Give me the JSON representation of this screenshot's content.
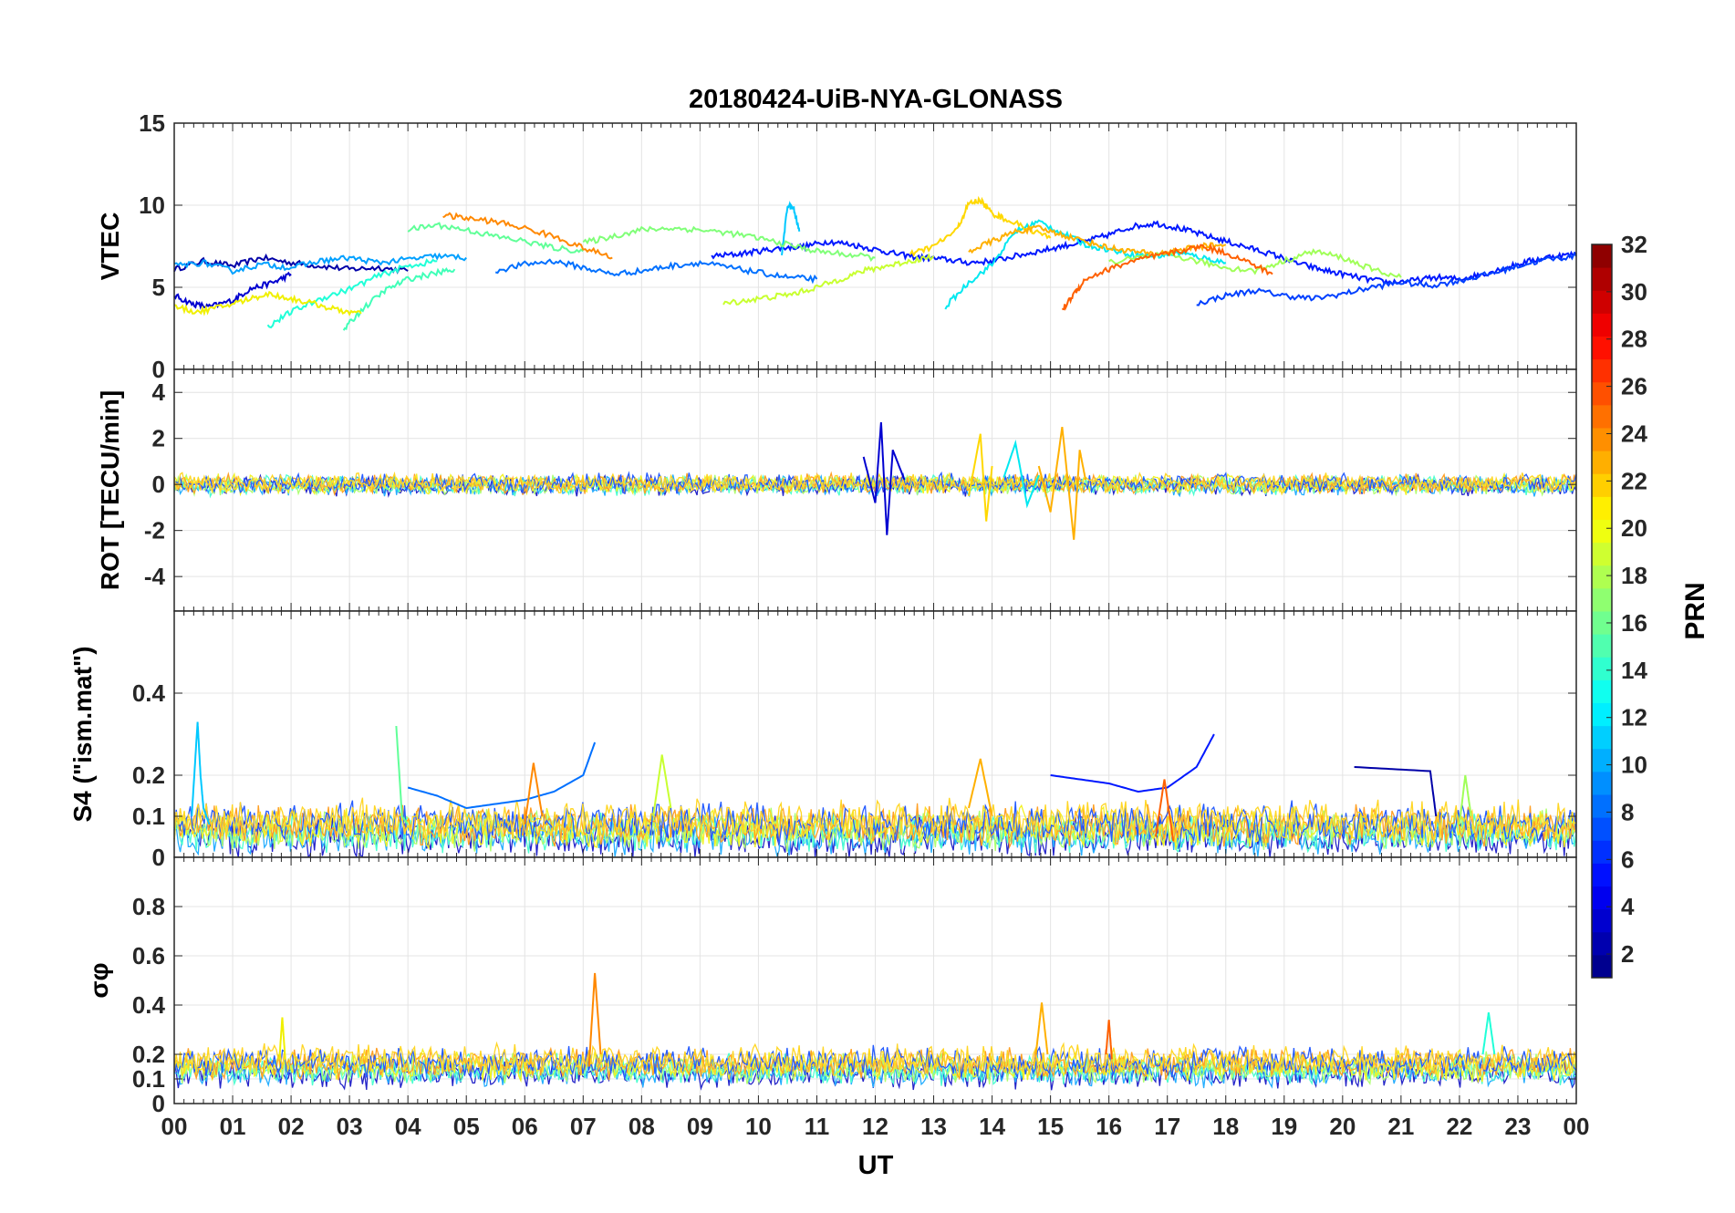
{
  "figure": {
    "title": "20180424-UiB-NYA-GLONASS",
    "xlabel": "UT",
    "xticks": [
      "00",
      "01",
      "02",
      "03",
      "04",
      "05",
      "06",
      "07",
      "08",
      "09",
      "10",
      "11",
      "12",
      "13",
      "14",
      "15",
      "16",
      "17",
      "18",
      "19",
      "20",
      "21",
      "22",
      "23",
      "00"
    ]
  },
  "colorbar": {
    "label": "PRN",
    "ticks": [
      "2",
      "4",
      "6",
      "8",
      "10",
      "12",
      "14",
      "16",
      "18",
      "20",
      "22",
      "24",
      "26",
      "28",
      "30",
      "32"
    ],
    "range": [
      1,
      32
    ],
    "colormap": "jet"
  },
  "chart_data": [
    {
      "type": "line",
      "ylabel": "VTEC",
      "ylim": [
        0,
        15
      ],
      "yticks": [
        "0",
        "5",
        "10",
        "15"
      ],
      "xlim": [
        0,
        24
      ],
      "grid": true,
      "series": [
        {
          "prn": 2,
          "color": "#0000a8",
          "x": [
            0,
            0.5,
            1,
            1.5,
            2,
            2.5,
            3,
            3.5,
            4
          ],
          "y": [
            6.1,
            6.6,
            6.3,
            6.8,
            6.5,
            6.3,
            6.1,
            6.2,
            6.0
          ]
        },
        {
          "prn": 3,
          "color": "#0000d0",
          "x": [
            0,
            0.3,
            0.6,
            1,
            1.3,
            1.7,
            2
          ],
          "y": [
            4.5,
            4.0,
            3.8,
            4.2,
            4.9,
            5.3,
            5.8
          ]
        },
        {
          "prn": 5,
          "color": "#0018ff",
          "x": [
            9.2,
            9.6,
            10,
            10.4,
            10.8,
            11.2,
            11.6,
            12,
            12.4,
            12.8,
            13.2,
            13.6,
            14,
            14.4,
            14.8,
            15.2,
            15.6,
            16,
            16.4,
            16.8,
            17.2,
            17.6,
            18,
            18.4,
            18.8,
            19.2,
            19.6,
            20,
            20.4,
            20.8,
            21.2,
            21.6,
            22,
            22.4,
            22.8,
            23.2,
            23.6,
            24
          ],
          "y": [
            6.9,
            7.0,
            7.2,
            7.4,
            7.5,
            7.8,
            7.6,
            7.3,
            7.0,
            6.8,
            6.7,
            6.5,
            6.6,
            6.9,
            7.2,
            7.5,
            7.8,
            8.2,
            8.7,
            8.9,
            8.6,
            8.2,
            7.8,
            7.4,
            7.0,
            6.5,
            6.1,
            5.8,
            5.5,
            5.3,
            5.4,
            5.6,
            5.5,
            5.8,
            6.2,
            6.6,
            6.9,
            7.0
          ]
        },
        {
          "prn": 6,
          "color": "#0040ff",
          "x": [
            17.5,
            18,
            18.5,
            19,
            19.5,
            20,
            20.5,
            21,
            21.5,
            22,
            22.5,
            23,
            23.5,
            24
          ],
          "y": [
            4.0,
            4.5,
            4.8,
            4.5,
            4.3,
            4.6,
            5.0,
            5.3,
            5.1,
            5.4,
            5.8,
            6.3,
            6.7,
            6.9
          ]
        },
        {
          "prn": 8,
          "color": "#0070ff",
          "x": [
            5.5,
            6,
            6.5,
            7,
            7.5,
            8,
            8.5,
            9,
            9.5,
            10,
            10.5,
            11
          ],
          "y": [
            6.0,
            6.4,
            6.6,
            6.2,
            5.8,
            6.0,
            6.3,
            6.5,
            6.2,
            5.9,
            5.6,
            5.5
          ]
        },
        {
          "prn": 10,
          "color": "#00a0ff",
          "x": [
            0,
            0.5,
            1,
            1.5,
            2,
            2.5,
            3,
            3.5,
            4,
            4.5,
            5
          ],
          "y": [
            6.3,
            6.5,
            6.0,
            6.4,
            6.2,
            6.6,
            6.8,
            6.5,
            6.7,
            6.9,
            6.8
          ]
        },
        {
          "prn": 11,
          "color": "#00c8ff",
          "x": [
            10.4,
            10.5,
            10.6,
            10.7
          ],
          "y": [
            7.0,
            10.0,
            9.8,
            8.4
          ]
        },
        {
          "prn": 12,
          "color": "#00e8f0",
          "x": [
            13.2,
            13.6,
            14,
            14.4,
            14.8,
            15.2,
            15.6,
            16,
            16.4,
            16.8,
            17.2,
            17.6,
            18
          ],
          "y": [
            3.8,
            5.3,
            6.4,
            8.4,
            9.0,
            8.3,
            7.6,
            7.3,
            7.0,
            6.9,
            7.1,
            6.8,
            6.5
          ]
        },
        {
          "prn": 13,
          "color": "#20ffd8",
          "x": [
            1.6,
            2,
            2.5,
            3,
            3.5,
            4,
            4.5
          ],
          "y": [
            2.6,
            3.5,
            4.3,
            4.9,
            5.7,
            6.3,
            6.6
          ]
        },
        {
          "prn": 14,
          "color": "#40ffb8",
          "x": [
            2.9,
            3.2,
            3.6,
            4,
            4.4,
            4.8
          ],
          "y": [
            2.4,
            3.6,
            4.8,
            5.5,
            5.8,
            6.1
          ]
        },
        {
          "prn": 15,
          "color": "#60ff98",
          "x": [
            4,
            4.5,
            5,
            5.5,
            6,
            6.5,
            7
          ],
          "y": [
            8.5,
            8.8,
            8.5,
            8.1,
            7.8,
            7.4,
            7.2
          ]
        },
        {
          "prn": 16,
          "color": "#80ff78",
          "x": [
            7,
            7.5,
            8,
            8.5,
            9,
            9.5,
            10,
            10.5,
            11,
            11.5,
            12
          ],
          "y": [
            7.7,
            8.1,
            8.5,
            8.6,
            8.5,
            8.3,
            8.0,
            7.6,
            7.2,
            7.0,
            6.8
          ]
        },
        {
          "prn": 17,
          "color": "#a0ff58",
          "x": [
            16,
            16.5,
            17,
            17.5,
            18,
            18.5,
            19,
            19.5,
            20,
            20.5,
            21
          ],
          "y": [
            6.5,
            6.8,
            7.0,
            6.6,
            6.2,
            6.0,
            6.6,
            7.2,
            6.8,
            6.1,
            5.6
          ]
        },
        {
          "prn": 19,
          "color": "#c8ff30",
          "x": [
            9.4,
            9.8,
            10.2,
            10.6,
            11,
            11.4,
            11.8,
            12.2,
            12.6,
            13
          ],
          "y": [
            4.0,
            4.2,
            4.4,
            4.6,
            5.0,
            5.5,
            6.0,
            6.3,
            6.6,
            6.9
          ]
        },
        {
          "prn": 20,
          "color": "#f0f000",
          "x": [
            0,
            0.4,
            0.8,
            1.2,
            1.6,
            2,
            2.4,
            2.8,
            3.2
          ],
          "y": [
            3.8,
            3.5,
            3.8,
            4.2,
            4.6,
            4.3,
            4.0,
            3.6,
            3.4
          ]
        },
        {
          "prn": 21,
          "color": "#ffd800",
          "x": [
            12.6,
            13,
            13.4,
            13.6,
            13.8,
            14,
            14.2,
            14.6,
            15
          ],
          "y": [
            7.0,
            7.5,
            8.5,
            10.1,
            10.3,
            9.5,
            9.2,
            8.6,
            8.0
          ]
        },
        {
          "prn": 22,
          "color": "#ffb000",
          "x": [
            13.6,
            14,
            14.4,
            14.8,
            15.2,
            15.6,
            16,
            16.4,
            16.8,
            17.2,
            17.6,
            18
          ],
          "y": [
            7.2,
            7.8,
            8.4,
            8.6,
            8.2,
            7.8,
            7.4,
            7.2,
            7.0,
            7.3,
            7.5,
            7.6
          ]
        },
        {
          "prn": 23,
          "color": "#ff8800",
          "x": [
            4.6,
            5,
            5.5,
            6,
            6.5,
            7,
            7.5
          ],
          "y": [
            9.4,
            9.2,
            9.0,
            8.6,
            8.1,
            7.4,
            6.8
          ]
        },
        {
          "prn": 24,
          "color": "#ff6000",
          "x": [
            15.2,
            15.4,
            15.6,
            16,
            16.4,
            16.8,
            17.2,
            17.6,
            18,
            18.4,
            18.8
          ],
          "y": [
            3.6,
            4.6,
            5.5,
            6.1,
            6.6,
            6.9,
            7.2,
            7.5,
            7.1,
            6.5,
            5.8
          ]
        }
      ]
    },
    {
      "type": "line",
      "ylabel": "ROT [TECU/min]",
      "ylim": [
        -5.5,
        5
      ],
      "yticks": [
        "-4",
        "-2",
        "0",
        "2",
        "4"
      ],
      "xlim": [
        0,
        24
      ],
      "grid": true,
      "series": [
        {
          "prn": 3,
          "color": "#0000d0",
          "x": [
            11.8,
            12,
            12.1,
            12.2,
            12.3,
            12.5
          ],
          "y": [
            1.2,
            -0.8,
            2.7,
            -2.2,
            1.5,
            0.2
          ]
        },
        {
          "prn": 22,
          "color": "#ffb000",
          "x": [
            14.8,
            15,
            15.2,
            15.4,
            15.5,
            15.6
          ],
          "y": [
            0.8,
            -1.2,
            2.5,
            -2.4,
            1.5,
            0.2
          ]
        },
        {
          "prn": 21,
          "color": "#ffd800",
          "x": [
            13.6,
            13.8,
            13.9,
            14
          ],
          "y": [
            -0.5,
            2.2,
            -1.6,
            0.8
          ]
        },
        {
          "prn": 12,
          "color": "#00e8f0",
          "x": [
            14.2,
            14.4,
            14.6,
            14.8
          ],
          "y": [
            0.3,
            1.8,
            -0.9,
            0.4
          ]
        }
      ]
    },
    {
      "type": "line",
      "ylabel": "S4 (\"ism.mat\")",
      "ylim": [
        0,
        0.6
      ],
      "yticks": [
        "0",
        "0.1",
        "0.2",
        "0.4"
      ],
      "xlim": [
        0,
        24
      ],
      "grid": true,
      "series": [
        {
          "prn": 11,
          "color": "#00c8ff",
          "x": [
            0.3,
            0.4,
            0.45,
            0.5,
            0.6
          ],
          "y": [
            0.1,
            0.33,
            0.2,
            0.12,
            0.08
          ]
        },
        {
          "prn": 8,
          "color": "#0070ff",
          "x": [
            4,
            4.5,
            5,
            5.5,
            6,
            6.5,
            7,
            7.2
          ],
          "y": [
            0.17,
            0.15,
            0.12,
            0.13,
            0.14,
            0.16,
            0.2,
            0.28
          ]
        },
        {
          "prn": 5,
          "color": "#0018ff",
          "x": [
            15,
            15.5,
            16,
            16.5,
            17,
            17.5,
            17.8
          ],
          "y": [
            0.2,
            0.19,
            0.18,
            0.16,
            0.17,
            0.22,
            0.3
          ]
        },
        {
          "prn": 15,
          "color": "#60ff98",
          "x": [
            3.8,
            3.9,
            4
          ],
          "y": [
            0.32,
            0.1,
            0.08
          ]
        },
        {
          "prn": 23,
          "color": "#ff8800",
          "x": [
            6,
            6.15,
            6.3
          ],
          "y": [
            0.08,
            0.23,
            0.1
          ]
        },
        {
          "prn": 19,
          "color": "#c8ff30",
          "x": [
            8.2,
            8.35,
            8.5
          ],
          "y": [
            0.1,
            0.25,
            0.12
          ]
        },
        {
          "prn": 22,
          "color": "#ffb000",
          "x": [
            13.6,
            13.8,
            14
          ],
          "y": [
            0.12,
            0.24,
            0.1
          ]
        },
        {
          "prn": 24,
          "color": "#ff6000",
          "x": [
            16.8,
            16.95,
            17.1
          ],
          "y": [
            0.05,
            0.19,
            0.04
          ]
        },
        {
          "prn": 2,
          "color": "#0000a8",
          "x": [
            20.2,
            21.5,
            21.6
          ],
          "y": [
            0.22,
            0.21,
            0.1
          ]
        },
        {
          "prn": 17,
          "color": "#a0ff58",
          "x": [
            22,
            22.1,
            22.2
          ],
          "y": [
            0.08,
            0.2,
            0.1
          ]
        }
      ]
    },
    {
      "type": "line",
      "ylabel": "σφ",
      "ylim": [
        0,
        1
      ],
      "yticks": [
        "0",
        "0.1",
        "0.2",
        "0.4",
        "0.6",
        "0.8"
      ],
      "xlim": [
        0,
        24
      ],
      "grid": true,
      "series": [
        {
          "prn": 23,
          "color": "#ff8800",
          "x": [
            7.1,
            7.2,
            7.3
          ],
          "y": [
            0.15,
            0.53,
            0.2
          ]
        },
        {
          "prn": 22,
          "color": "#ffb000",
          "x": [
            14.75,
            14.85,
            14.95
          ],
          "y": [
            0.2,
            0.41,
            0.2
          ]
        },
        {
          "prn": 24,
          "color": "#ff6000",
          "x": [
            15.95,
            16,
            16.05
          ],
          "y": [
            0.2,
            0.34,
            0.18
          ]
        },
        {
          "prn": 20,
          "color": "#f0f000",
          "x": [
            1.8,
            1.85,
            1.9
          ],
          "y": [
            0.18,
            0.35,
            0.18
          ]
        },
        {
          "prn": 13,
          "color": "#20ffd8",
          "x": [
            22.4,
            22.5,
            22.6
          ],
          "y": [
            0.2,
            0.37,
            0.2
          ]
        }
      ]
    }
  ]
}
